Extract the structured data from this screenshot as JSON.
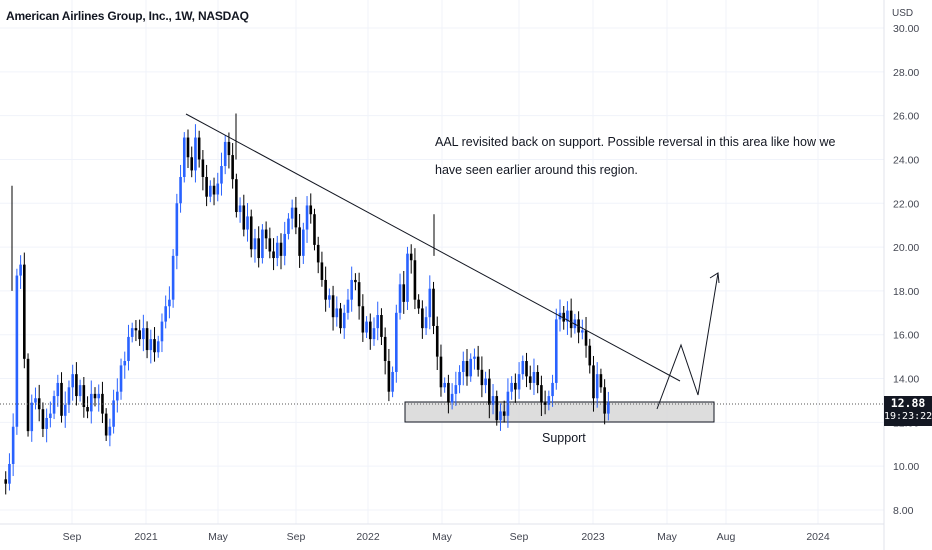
{
  "header": {
    "title": "American Airlines Group, Inc., 1W, NASDAQ",
    "currency": "USD"
  },
  "annotation": {
    "note": "AAL revisited back on support. Possible reversal in this area like how we have seen earlier around this region.",
    "support_label": "Support"
  },
  "price_tag": {
    "price": "12.88",
    "countdown": "19:23:22"
  },
  "colors": {
    "up": "#2962ff",
    "down": "#000000",
    "grid": "#f0f3fa",
    "axis_text": "#434651",
    "support_fill": "#d9d9d9"
  },
  "chart_data": {
    "type": "candlestick",
    "title": "American Airlines Group, Inc., 1W, NASDAQ",
    "ylabel": "USD",
    "ylim": [
      8,
      30
    ],
    "y_ticks": [
      "8.00",
      "10.00",
      "12.00",
      "14.00",
      "16.00",
      "18.00",
      "20.00",
      "22.00",
      "24.00",
      "26.00",
      "28.00",
      "30.00"
    ],
    "x_ticks": [
      "Sep",
      "2021",
      "May",
      "Sep",
      "2022",
      "May",
      "Sep",
      "2023",
      "May",
      "Aug",
      "2024"
    ],
    "last_price": 12.88,
    "candle_series": [
      9.4,
      9.2,
      10.1,
      11.8,
      18.7,
      19.2,
      14.9,
      11.6,
      12.9,
      13.1,
      12.6,
      11.7,
      12.2,
      12.4,
      13.2,
      13.8,
      12.3,
      12.8,
      13.6,
      14.2,
      13.2,
      13.7,
      12.7,
      12.5,
      13.3,
      13.1,
      13.3,
      12.4,
      11.4,
      11.8,
      13.0,
      13.4,
      14.6,
      14.8,
      15.9,
      16.3,
      16.2,
      15.8,
      16.3,
      15.3,
      15.8,
      15.2,
      15.7,
      16.6,
      17.3,
      17.6,
      19.6,
      22.0,
      23.2,
      25.0,
      24.1,
      23.5,
      25.0,
      24.0,
      23.2,
      22.3,
      22.8,
      22.4,
      22.9,
      23.7,
      24.8,
      24.2,
      23.1,
      21.6,
      21.9,
      20.8,
      21.4,
      19.9,
      20.4,
      19.5,
      20.8,
      20.4,
      19.8,
      19.5,
      20.2,
      19.6,
      20.6,
      21.3,
      21.8,
      20.9,
      19.6,
      20.8,
      21.9,
      21.5,
      20.1,
      19.3,
      18.5,
      17.6,
      17.8,
      16.8,
      17.2,
      16.3,
      17.0,
      17.6,
      18.5,
      18.4,
      17.3,
      16.1,
      16.6,
      15.8,
      16.3,
      16.9,
      15.9,
      14.8,
      13.4,
      14.3,
      17.0,
      18.3,
      17.5,
      19.7,
      19.4,
      17.6,
      17.2,
      16.3,
      16.8,
      18.1,
      16.4,
      15.0,
      13.6,
      13.8,
      12.9,
      13.3,
      13.7,
      14.3,
      14.8,
      14.1,
      14.9,
      15.0,
      14.4,
      13.7,
      14.0,
      12.8,
      13.2,
      12.1,
      12.5,
      12.3,
      13.4,
      13.8,
      13.5,
      14.2,
      14.8,
      14.1,
      13.8,
      14.3,
      13.7,
      12.9,
      12.8,
      13.2,
      13.8,
      16.7,
      17.0,
      16.6,
      17.1,
      16.3,
      16.7,
      16.1,
      16.2,
      15.5,
      14.6,
      13.1,
      14.2,
      13.6,
      12.4,
      12.9
    ]
  }
}
